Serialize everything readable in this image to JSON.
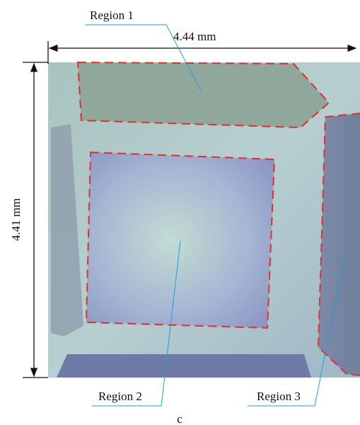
{
  "regions": [
    {
      "label": "Region 1"
    },
    {
      "label": "Region 2"
    },
    {
      "label": "Region 3"
    }
  ],
  "dimensions": {
    "width": "4.44 mm",
    "height": "4.41 mm"
  },
  "caption": "c"
}
